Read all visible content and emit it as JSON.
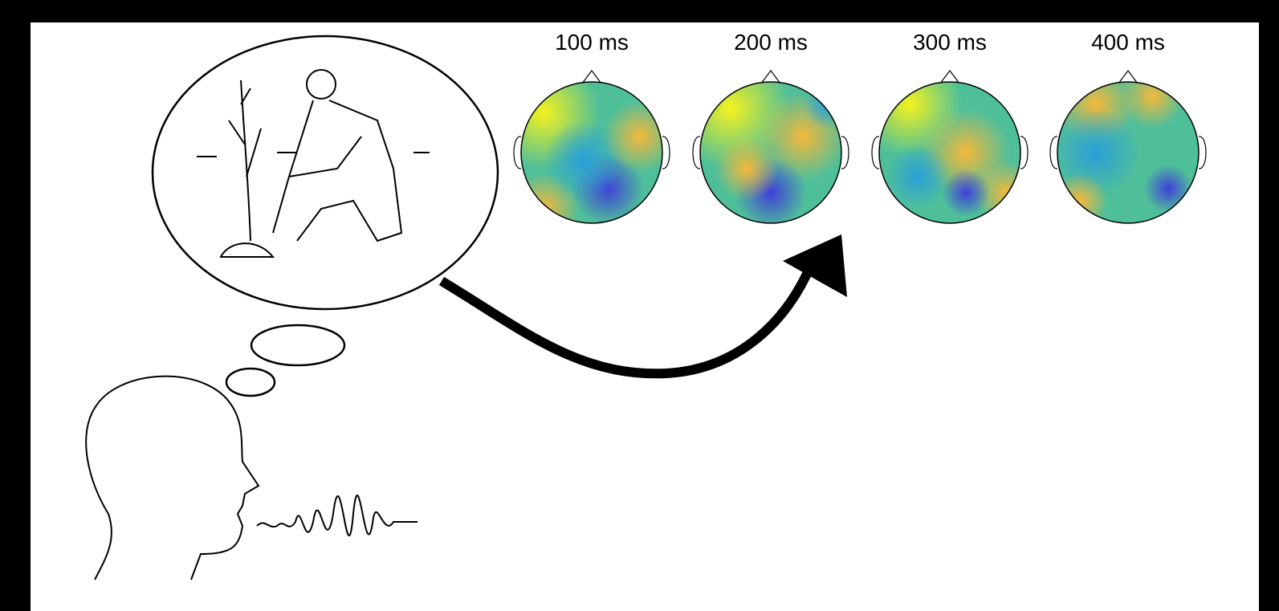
{
  "topomaps": [
    {
      "label": "100 ms"
    },
    {
      "label": "200 ms"
    },
    {
      "label": "300 ms"
    },
    {
      "label": "400 ms"
    }
  ]
}
